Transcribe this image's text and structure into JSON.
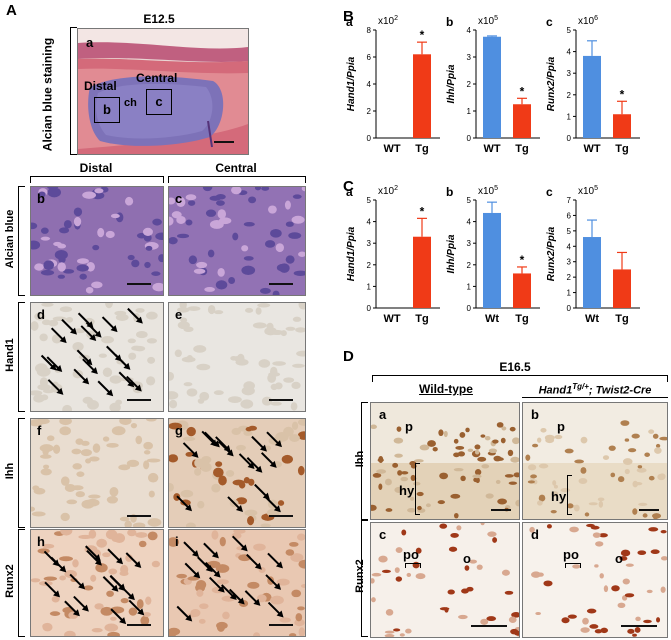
{
  "panelA": {
    "letter": "A",
    "top": {
      "sublabel": "a",
      "stage": "E12.5",
      "side_label": "Alcian blue staining",
      "region_distal": "Distal",
      "region_central": "Central",
      "ch": "ch",
      "box_b": "b",
      "box_c": "c"
    },
    "columns": [
      "Distal",
      "Central"
    ],
    "rows": [
      {
        "label": "Alcian blue",
        "left": "b",
        "right": "c"
      },
      {
        "label": "Hand1",
        "left": "d",
        "right": "e"
      },
      {
        "label": "Ihh",
        "left": "f",
        "right": "g"
      },
      {
        "label": "Runx2",
        "left": "h",
        "right": "i"
      }
    ]
  },
  "panelB": {
    "letter": "B"
  },
  "panelC": {
    "letter": "C"
  },
  "colors": {
    "wt": "#4f8fe0",
    "tg": "#f03a17",
    "error": "#d02010"
  },
  "chart_data": [
    {
      "panel": "B",
      "sub": "a",
      "type": "bar",
      "categories": [
        "WT",
        "Tg"
      ],
      "values": [
        0,
        6.2
      ],
      "errors": [
        0,
        0.9
      ],
      "ylabel": "Hand1/Ppia",
      "multiplier": "x10",
      "exponent": "2",
      "ylim": [
        0,
        8
      ],
      "yticks": [
        "0",
        "2",
        "4",
        "6",
        "8"
      ],
      "significance": [
        "",
        "*"
      ]
    },
    {
      "panel": "B",
      "sub": "b",
      "type": "bar",
      "categories": [
        "WT",
        "Tg"
      ],
      "values": [
        3.75,
        1.25
      ],
      "errors": [
        0.03,
        0.22
      ],
      "ylabel": "Ihh/Ppia",
      "multiplier": "x10",
      "exponent": "5",
      "ylim": [
        0,
        4
      ],
      "yticks": [
        "0",
        "1",
        "2",
        "3",
        "4"
      ],
      "significance": [
        "",
        "*"
      ]
    },
    {
      "panel": "B",
      "sub": "c",
      "type": "bar",
      "categories": [
        "WT",
        "Tg"
      ],
      "values": [
        3.8,
        1.1
      ],
      "errors": [
        0.7,
        0.6
      ],
      "ylabel": "Runx2/Ppia",
      "multiplier": "x10",
      "exponent": "6",
      "ylim": [
        0,
        5
      ],
      "yticks": [
        "0",
        "1",
        "2",
        "3",
        "4",
        "5"
      ],
      "significance": [
        "",
        "*"
      ]
    },
    {
      "panel": "C",
      "sub": "a",
      "type": "bar",
      "categories": [
        "WT",
        "Tg"
      ],
      "values": [
        0,
        3.3
      ],
      "errors": [
        0,
        0.85
      ],
      "ylabel": "Hand1/Ppia",
      "multiplier": "x10",
      "exponent": "2",
      "ylim": [
        0,
        5
      ],
      "yticks": [
        "0",
        "1",
        "2",
        "3",
        "4",
        "5"
      ],
      "significance": [
        "",
        "*"
      ]
    },
    {
      "panel": "C",
      "sub": "b",
      "type": "bar",
      "categories": [
        "Wt",
        "Tg"
      ],
      "values": [
        4.4,
        1.6
      ],
      "errors": [
        0.5,
        0.3
      ],
      "ylabel": "Ihh/Ppia",
      "multiplier": "x10",
      "exponent": "5",
      "ylim": [
        0,
        5
      ],
      "yticks": [
        "0",
        "1",
        "2",
        "3",
        "4",
        "5"
      ],
      "significance": [
        "",
        "*"
      ]
    },
    {
      "panel": "C",
      "sub": "c",
      "type": "bar",
      "categories": [
        "Wt",
        "Tg"
      ],
      "values": [
        4.6,
        2.5
      ],
      "errors": [
        1.1,
        1.1
      ],
      "ylabel": "Runx2/Ppia",
      "multiplier": "x10",
      "exponent": "5",
      "ylim": [
        0,
        7
      ],
      "yticks": [
        "0",
        "1",
        "2",
        "3",
        "4",
        "5",
        "6",
        "7"
      ],
      "significance": [
        "",
        ""
      ]
    }
  ],
  "panelD": {
    "letter": "D",
    "stage": "E16.5",
    "col_wt": "Wild-type",
    "col_tg_main": "Hand1",
    "col_tg_sup": "Tg/+",
    "col_tg_rest": "; Twist2-Cre",
    "rows": [
      {
        "label": "Ihh",
        "left": "a",
        "right": "b",
        "p": "p",
        "hy": "hy"
      },
      {
        "label": "Runx2",
        "left": "c",
        "right": "d",
        "po": "po",
        "o": "o"
      }
    ]
  }
}
